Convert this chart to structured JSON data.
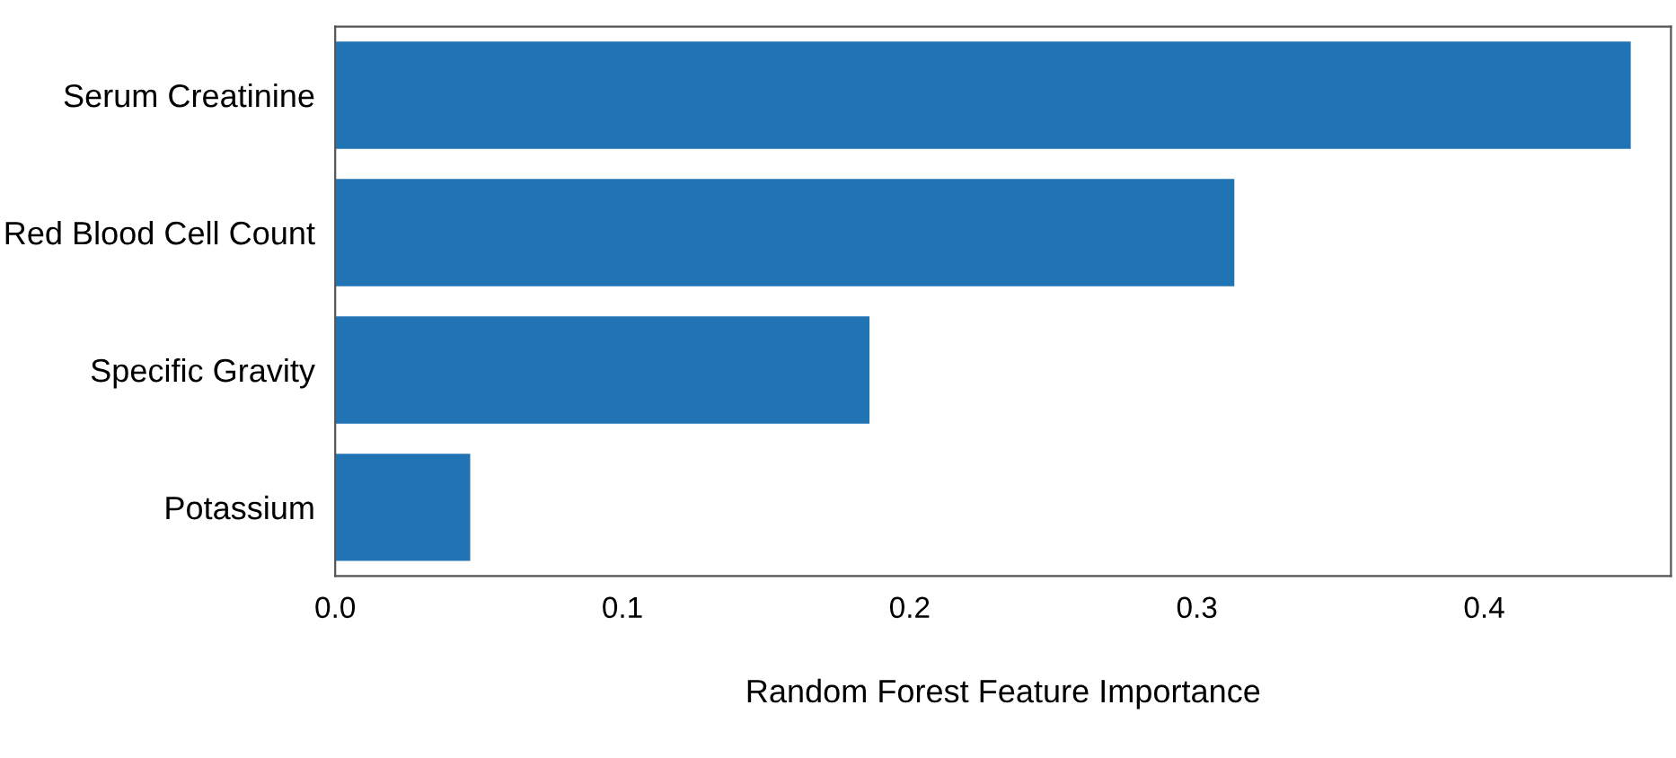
{
  "chart_data": {
    "type": "bar",
    "orientation": "horizontal",
    "xlabel": "Random Forest Feature Importance",
    "categories": [
      "Serum Creatinine",
      "Red Blood Cell Count",
      "Specific Gravity",
      "Potassium"
    ],
    "values": [
      0.451,
      0.313,
      0.186,
      0.047
    ],
    "color": "#2174b4",
    "xlim": [
      0,
      0.465
    ],
    "xticks": [
      {
        "value": 0,
        "label": "0.0"
      },
      0.1,
      0.2,
      0.3,
      0.4
    ],
    "grid": false
  }
}
